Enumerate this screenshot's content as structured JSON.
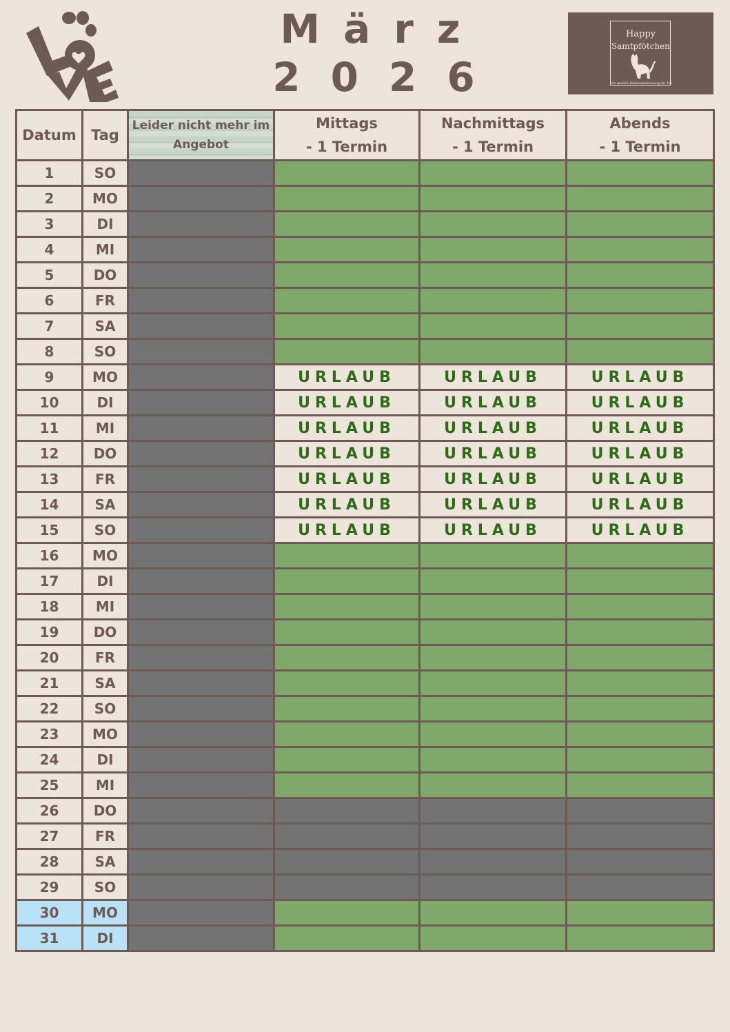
{
  "header": {
    "month": "März",
    "year": "2026",
    "love_logo": "LOVE",
    "brand_logo": {
      "line1": "Happy",
      "line2": "Samtpfötchen",
      "tagline": "Die mobile Katzenbetreuung im Tal"
    }
  },
  "colors": {
    "available": "#80a86a",
    "unavailable": "#737373",
    "vacation_text": "#2f6b17",
    "highlight": "#b9e1f8",
    "border": "#6e5a55"
  },
  "columns": {
    "date": "Datum",
    "day": "Tag",
    "discontinued": "Leider nicht mehr im Angebot",
    "midday": "Mittags",
    "midday_sub": "- 1 Termin",
    "afternoon": "Nachmittags",
    "afternoon_sub": "- 1 Termin",
    "evening": "Abends",
    "evening_sub": "- 1 Termin"
  },
  "vacation_label": "URLAUB",
  "rows": [
    {
      "date": "1",
      "day": "SO",
      "status": "available"
    },
    {
      "date": "2",
      "day": "MO",
      "status": "available"
    },
    {
      "date": "3",
      "day": "DI",
      "status": "available"
    },
    {
      "date": "4",
      "day": "MI",
      "status": "available"
    },
    {
      "date": "5",
      "day": "DO",
      "status": "available"
    },
    {
      "date": "6",
      "day": "FR",
      "status": "available"
    },
    {
      "date": "7",
      "day": "SA",
      "status": "available"
    },
    {
      "date": "8",
      "day": "SO",
      "status": "available"
    },
    {
      "date": "9",
      "day": "MO",
      "status": "vacation"
    },
    {
      "date": "10",
      "day": "DI",
      "status": "vacation"
    },
    {
      "date": "11",
      "day": "MI",
      "status": "vacation"
    },
    {
      "date": "12",
      "day": "DO",
      "status": "vacation"
    },
    {
      "date": "13",
      "day": "FR",
      "status": "vacation"
    },
    {
      "date": "14",
      "day": "SA",
      "status": "vacation"
    },
    {
      "date": "15",
      "day": "SO",
      "status": "vacation"
    },
    {
      "date": "16",
      "day": "MO",
      "status": "available"
    },
    {
      "date": "17",
      "day": "DI",
      "status": "available"
    },
    {
      "date": "18",
      "day": "MI",
      "status": "available"
    },
    {
      "date": "19",
      "day": "DO",
      "status": "available"
    },
    {
      "date": "20",
      "day": "FR",
      "status": "available"
    },
    {
      "date": "21",
      "day": "SA",
      "status": "available"
    },
    {
      "date": "22",
      "day": "SO",
      "status": "available"
    },
    {
      "date": "23",
      "day": "MO",
      "status": "available"
    },
    {
      "date": "24",
      "day": "DI",
      "status": "available"
    },
    {
      "date": "25",
      "day": "MI",
      "status": "available"
    },
    {
      "date": "26",
      "day": "DO",
      "status": "unavailable"
    },
    {
      "date": "27",
      "day": "FR",
      "status": "unavailable"
    },
    {
      "date": "28",
      "day": "SA",
      "status": "unavailable"
    },
    {
      "date": "29",
      "day": "SO",
      "status": "unavailable"
    },
    {
      "date": "30",
      "day": "MO",
      "status": "available",
      "highlight": true
    },
    {
      "date": "31",
      "day": "DI",
      "status": "available",
      "highlight": true
    }
  ]
}
